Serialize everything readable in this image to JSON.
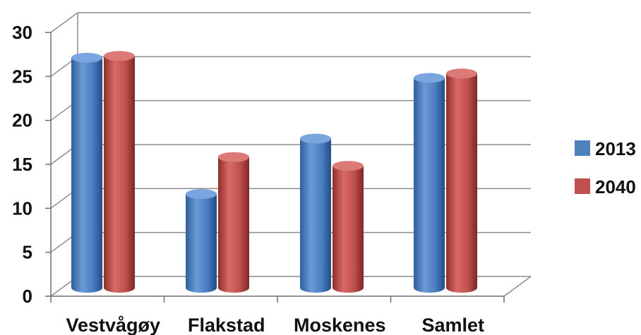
{
  "chart_data": {
    "type": "bar",
    "style": "3d-cylinder",
    "title": "",
    "xlabel": "",
    "ylabel": "",
    "ylim": [
      0,
      30
    ],
    "yticks": [
      "0",
      "5",
      "10",
      "15",
      "20",
      "25",
      "30"
    ],
    "categories": [
      "Vestvågøy",
      "Flakstad",
      "Moskenes",
      "Samlet"
    ],
    "series": [
      {
        "name": "2013",
        "values": [
          26,
          10.5,
          16.8,
          23.7
        ],
        "color": "#4F81BD"
      },
      {
        "name": "2040",
        "values": [
          26.2,
          14.7,
          13.7,
          24.2
        ],
        "color": "#C0504D"
      }
    ],
    "grid": true,
    "legend": "right"
  }
}
